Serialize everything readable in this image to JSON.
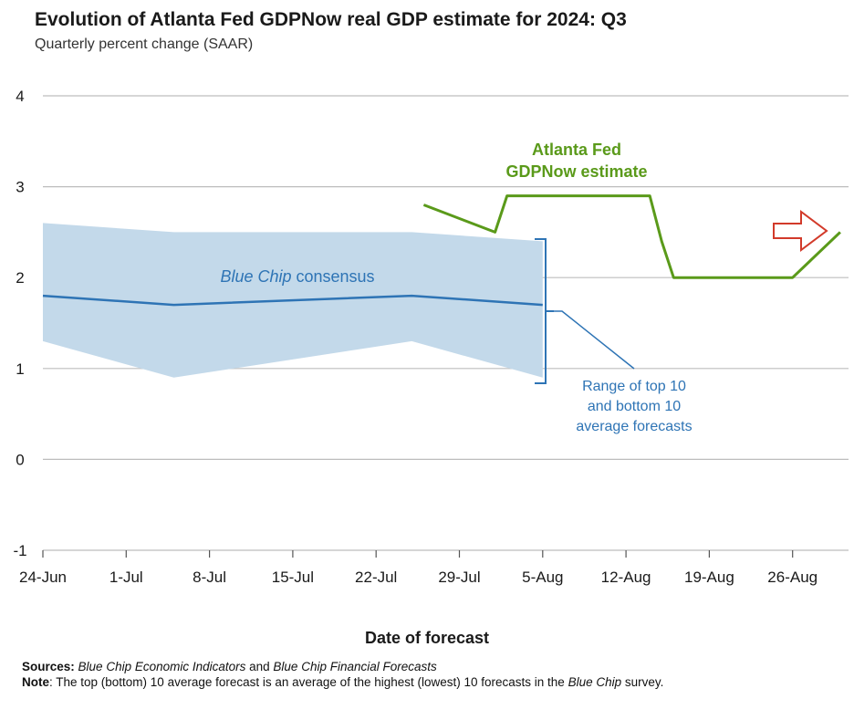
{
  "title": "Evolution of Atlanta Fed GDPNow real GDP estimate for 2024: Q3",
  "subtitle": "Quarterly percent change (SAAR)",
  "xlabel": "Date of forecast",
  "colors": {
    "gdpnow": "#5a9a1a",
    "bluechip": "#2e74b5",
    "band": "#c3d9ea",
    "arrow": "#d23a2a",
    "grid": "#bdbdbd"
  },
  "chart_data": {
    "type": "line",
    "title": "Evolution of Atlanta Fed GDPNow real GDP estimate for 2024: Q3",
    "subtitle": "Quarterly percent change (SAAR)",
    "xlabel": "Date of forecast",
    "ylabel": "",
    "ylim": [
      -1,
      4
    ],
    "yticks": [
      4,
      3,
      2,
      1,
      0,
      -1
    ],
    "xticks": [
      "2024-06-24",
      "2024-07-01",
      "2024-07-08",
      "2024-07-15",
      "2024-07-22",
      "2024-07-29",
      "2024-08-05",
      "2024-08-12",
      "2024-08-19",
      "2024-08-26"
    ],
    "xtick_labels": [
      "24-Jun",
      "1-Jul",
      "8-Jul",
      "15-Jul",
      "22-Jul",
      "29-Jul",
      "5-Aug",
      "12-Aug",
      "19-Aug",
      "26-Aug"
    ],
    "xlim": [
      "2024-06-24",
      "2024-09-01"
    ],
    "grid": "horizontal",
    "series": [
      {
        "name": "Atlanta Fed GDPNow estimate",
        "points": [
          {
            "x": "2024-07-26",
            "y": 2.8
          },
          {
            "x": "2024-08-01",
            "y": 2.5
          },
          {
            "x": "2024-08-02",
            "y": 2.9
          },
          {
            "x": "2024-08-14",
            "y": 2.9
          },
          {
            "x": "2024-08-15",
            "y": 2.4
          },
          {
            "x": "2024-08-16",
            "y": 2.0
          },
          {
            "x": "2024-08-23",
            "y": 2.0
          },
          {
            "x": "2024-08-26",
            "y": 2.0
          },
          {
            "x": "2024-08-30",
            "y": 2.5
          }
        ]
      },
      {
        "name": "Blue Chip consensus",
        "points": [
          {
            "x": "2024-06-24",
            "y": 1.8
          },
          {
            "x": "2024-07-05",
            "y": 1.7
          },
          {
            "x": "2024-07-25",
            "y": 1.8
          },
          {
            "x": "2024-08-05",
            "y": 1.7
          }
        ]
      }
    ],
    "band": {
      "name": "Range of top 10 and bottom 10 average forecasts",
      "points": [
        {
          "x": "2024-06-24",
          "upper": 2.6,
          "lower": 1.3
        },
        {
          "x": "2024-07-05",
          "upper": 2.5,
          "lower": 0.9
        },
        {
          "x": "2024-07-25",
          "upper": 2.5,
          "lower": 1.3
        },
        {
          "x": "2024-08-05",
          "upper": 2.4,
          "lower": 0.9
        }
      ]
    },
    "annotations": {
      "gdpnow_line1": "Atlanta Fed",
      "gdpnow_line2": "GDPNow estimate",
      "bluechip_italic": "Blue Chip",
      "bluechip_rest": " consensus",
      "range_line1": "Range of top 10",
      "range_line2": "and bottom 10",
      "range_line3": "average forecasts"
    }
  },
  "notes": {
    "sources_label": "Sources:",
    "sources_italic1": "Blue Chip Economic Indicators",
    "sources_and": " and ",
    "sources_italic2": "Blue Chip Financial Forecasts",
    "note_label": "Note",
    "note_text": ": The top (bottom) 10 average forecast is an average of the highest (lowest) 10 forecasts in the ",
    "note_italic": "Blue Chip",
    "note_end": " survey."
  }
}
